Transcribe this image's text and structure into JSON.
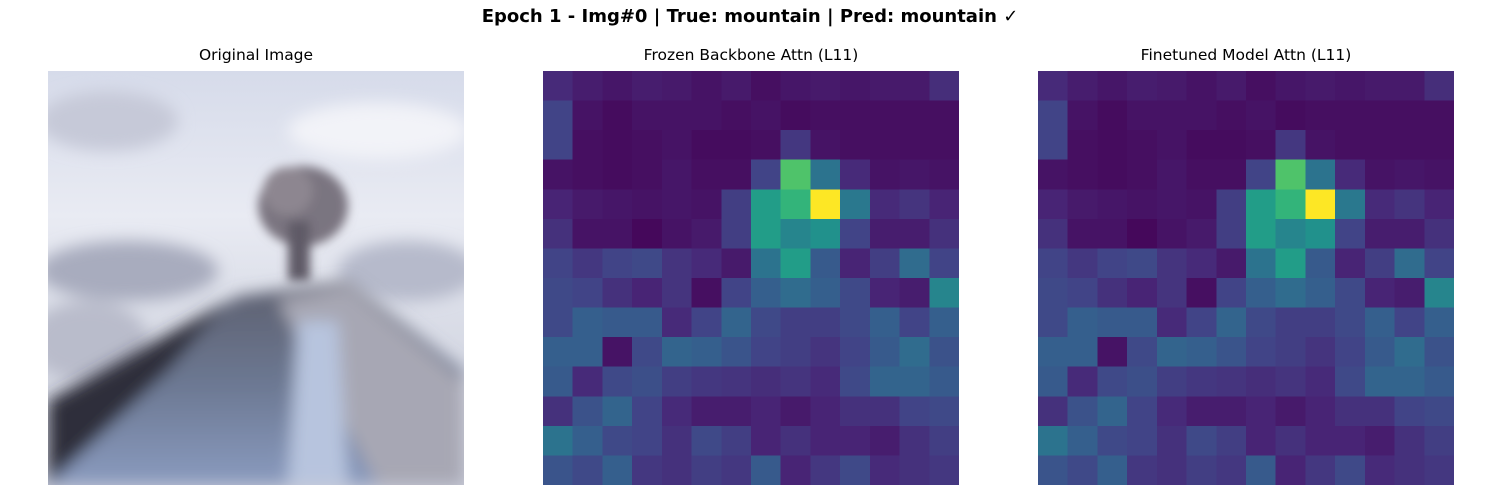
{
  "figure": {
    "title": "Epoch 1 - Img#0 | True: mountain | Pred: mountain ✓"
  },
  "panels": {
    "original": {
      "title": "Original Image"
    },
    "frozen": {
      "title": "Frozen Backbone Attn (L11)"
    },
    "finetuned": {
      "title": "Finetuned Model Attn (L11)"
    }
  },
  "chart_data": [
    {
      "type": "heatmap",
      "title": "Frozen Backbone Attn (L11)",
      "colormap": "viridis",
      "axes": "off",
      "rows": 14,
      "cols": 14,
      "values": [
        [
          0.12,
          0.08,
          0.06,
          0.08,
          0.07,
          0.05,
          0.07,
          0.04,
          0.06,
          0.07,
          0.06,
          0.07,
          0.07,
          0.13
        ],
        [
          0.2,
          0.05,
          0.03,
          0.05,
          0.05,
          0.05,
          0.04,
          0.05,
          0.03,
          0.04,
          0.04,
          0.04,
          0.04,
          0.04
        ],
        [
          0.2,
          0.04,
          0.03,
          0.04,
          0.05,
          0.03,
          0.03,
          0.04,
          0.16,
          0.05,
          0.04,
          0.04,
          0.04,
          0.04
        ],
        [
          0.05,
          0.04,
          0.03,
          0.04,
          0.06,
          0.04,
          0.04,
          0.2,
          0.72,
          0.38,
          0.12,
          0.05,
          0.06,
          0.05
        ],
        [
          0.1,
          0.07,
          0.06,
          0.05,
          0.06,
          0.05,
          0.18,
          0.55,
          0.65,
          1.0,
          0.4,
          0.12,
          0.15,
          0.1
        ],
        [
          0.14,
          0.05,
          0.05,
          0.02,
          0.05,
          0.07,
          0.18,
          0.55,
          0.45,
          0.5,
          0.2,
          0.08,
          0.08,
          0.14
        ],
        [
          0.2,
          0.16,
          0.2,
          0.22,
          0.15,
          0.12,
          0.07,
          0.38,
          0.55,
          0.28,
          0.1,
          0.18,
          0.35,
          0.2
        ],
        [
          0.22,
          0.2,
          0.14,
          0.1,
          0.15,
          0.04,
          0.2,
          0.3,
          0.35,
          0.3,
          0.22,
          0.1,
          0.08,
          0.45
        ],
        [
          0.22,
          0.3,
          0.28,
          0.28,
          0.12,
          0.2,
          0.32,
          0.22,
          0.18,
          0.18,
          0.22,
          0.3,
          0.2,
          0.3
        ],
        [
          0.3,
          0.3,
          0.05,
          0.22,
          0.32,
          0.3,
          0.26,
          0.2,
          0.18,
          0.15,
          0.2,
          0.28,
          0.35,
          0.25
        ],
        [
          0.28,
          0.12,
          0.22,
          0.24,
          0.18,
          0.16,
          0.15,
          0.13,
          0.15,
          0.12,
          0.22,
          0.32,
          0.32,
          0.28
        ],
        [
          0.14,
          0.25,
          0.32,
          0.2,
          0.12,
          0.08,
          0.08,
          0.1,
          0.07,
          0.1,
          0.14,
          0.14,
          0.2,
          0.22
        ],
        [
          0.38,
          0.3,
          0.22,
          0.2,
          0.14,
          0.22,
          0.18,
          0.1,
          0.14,
          0.1,
          0.1,
          0.08,
          0.14,
          0.18
        ],
        [
          0.26,
          0.22,
          0.3,
          0.16,
          0.14,
          0.18,
          0.16,
          0.28,
          0.1,
          0.16,
          0.22,
          0.12,
          0.14,
          0.16
        ]
      ]
    },
    {
      "type": "heatmap",
      "title": "Finetuned Model Attn (L11)",
      "colormap": "viridis",
      "axes": "off",
      "rows": 14,
      "cols": 14,
      "values": [
        [
          0.12,
          0.08,
          0.06,
          0.08,
          0.07,
          0.05,
          0.07,
          0.04,
          0.06,
          0.07,
          0.06,
          0.07,
          0.07,
          0.13
        ],
        [
          0.2,
          0.05,
          0.03,
          0.05,
          0.05,
          0.05,
          0.04,
          0.05,
          0.03,
          0.04,
          0.04,
          0.04,
          0.04,
          0.04
        ],
        [
          0.2,
          0.04,
          0.03,
          0.04,
          0.05,
          0.03,
          0.03,
          0.04,
          0.16,
          0.05,
          0.04,
          0.04,
          0.04,
          0.04
        ],
        [
          0.05,
          0.04,
          0.03,
          0.04,
          0.06,
          0.04,
          0.04,
          0.2,
          0.72,
          0.38,
          0.12,
          0.05,
          0.06,
          0.05
        ],
        [
          0.1,
          0.07,
          0.06,
          0.05,
          0.06,
          0.05,
          0.18,
          0.55,
          0.65,
          1.0,
          0.4,
          0.12,
          0.15,
          0.1
        ],
        [
          0.14,
          0.05,
          0.05,
          0.02,
          0.05,
          0.07,
          0.18,
          0.55,
          0.45,
          0.5,
          0.2,
          0.08,
          0.08,
          0.14
        ],
        [
          0.2,
          0.16,
          0.2,
          0.22,
          0.15,
          0.12,
          0.07,
          0.38,
          0.55,
          0.28,
          0.1,
          0.18,
          0.35,
          0.2
        ],
        [
          0.22,
          0.2,
          0.14,
          0.1,
          0.15,
          0.04,
          0.2,
          0.3,
          0.35,
          0.3,
          0.22,
          0.1,
          0.08,
          0.45
        ],
        [
          0.22,
          0.3,
          0.28,
          0.28,
          0.12,
          0.2,
          0.32,
          0.22,
          0.18,
          0.18,
          0.22,
          0.3,
          0.2,
          0.3
        ],
        [
          0.3,
          0.3,
          0.05,
          0.22,
          0.32,
          0.3,
          0.26,
          0.2,
          0.18,
          0.15,
          0.2,
          0.28,
          0.35,
          0.25
        ],
        [
          0.28,
          0.12,
          0.22,
          0.24,
          0.18,
          0.16,
          0.15,
          0.13,
          0.15,
          0.12,
          0.22,
          0.32,
          0.32,
          0.28
        ],
        [
          0.14,
          0.25,
          0.32,
          0.2,
          0.12,
          0.08,
          0.08,
          0.1,
          0.07,
          0.1,
          0.14,
          0.14,
          0.2,
          0.22
        ],
        [
          0.38,
          0.3,
          0.22,
          0.2,
          0.14,
          0.22,
          0.18,
          0.1,
          0.14,
          0.1,
          0.1,
          0.08,
          0.14,
          0.18
        ],
        [
          0.26,
          0.22,
          0.3,
          0.16,
          0.14,
          0.18,
          0.16,
          0.28,
          0.1,
          0.16,
          0.22,
          0.12,
          0.14,
          0.16
        ]
      ]
    }
  ]
}
